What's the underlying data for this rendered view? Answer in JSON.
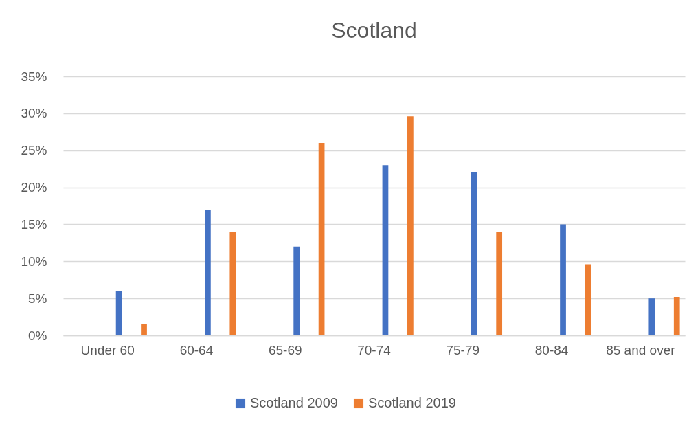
{
  "chart_data": {
    "type": "bar",
    "title": "Scotland",
    "categories": [
      "Under 60",
      "60-64",
      "65-69",
      "70-74",
      "75-79",
      "80-84",
      "85 and over"
    ],
    "series": [
      {
        "name": "Scotland 2009",
        "color": "#4472c4",
        "values": [
          6,
          17,
          12,
          23,
          22,
          15,
          5
        ]
      },
      {
        "name": "Scotland 2019",
        "color": "#ed7d31",
        "values": [
          1.5,
          14,
          26,
          29.6,
          14,
          9.6,
          5.2
        ]
      }
    ],
    "ylim": [
      0,
      35
    ],
    "yticks": [
      {
        "value": 0,
        "label": "0%"
      },
      {
        "value": 5,
        "label": "5%"
      },
      {
        "value": 10,
        "label": "10%"
      },
      {
        "value": 15,
        "label": "15%"
      },
      {
        "value": 20,
        "label": "20%"
      },
      {
        "value": 25,
        "label": "25%"
      },
      {
        "value": 30,
        "label": "30%"
      },
      {
        "value": 35,
        "label": "35%"
      }
    ],
    "grid": "y",
    "legend": "bottom"
  }
}
